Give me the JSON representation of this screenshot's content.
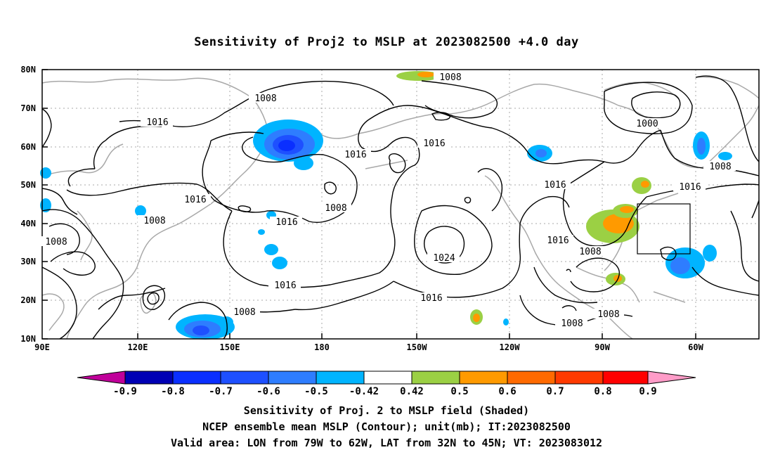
{
  "title": "Sensitivity of Proj2 to MSLP at 2023082500 +4.0 day",
  "map": {
    "lat_labels": [
      "80N",
      "70N",
      "60N",
      "50N",
      "40N",
      "30N",
      "20N",
      "10N"
    ],
    "lon_labels": [
      "90E",
      "120E",
      "150E",
      "180",
      "150W",
      "120W",
      "90W",
      "60W"
    ],
    "contour_labels": [
      "1008",
      "1016",
      "1000",
      "1024"
    ],
    "contour_levels_mb": [
      1000,
      1008,
      1016,
      1024
    ],
    "valid_area": {
      "lon_from": "79W",
      "lon_to": "62W",
      "lat_from": "32N",
      "lat_to": "45N"
    }
  },
  "colorbar": {
    "levels": [
      "-0.9",
      "-0.8",
      "-0.7",
      "-0.6",
      "-0.5",
      "-0.42",
      "0.42",
      "0.5",
      "0.6",
      "0.7",
      "0.8",
      "0.9"
    ],
    "colors": [
      "#c0009a",
      "#0000b4",
      "#0a2fff",
      "#1e50ff",
      "#2e7dff",
      "#00b4ff",
      "#ffffff",
      "#9bd044",
      "#ff9a00",
      "#ff6a00",
      "#ff3a00",
      "#ff0000",
      "#ff9cc8"
    ]
  },
  "captions": [
    "Sensitivity of Proj. 2 to MSLP field (Shaded)",
    "NCEP ensemble mean MSLP (Contour); unit(mb); IT:2023082500",
    "Valid area: LON from 79W to 62W, LAT from 32N to 45N; VT: 2023083012"
  ]
}
